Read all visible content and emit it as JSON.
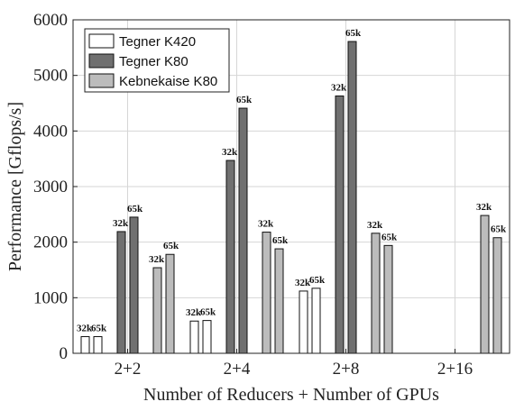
{
  "chart_data": {
    "type": "bar",
    "xlabel": "Number of Reducers + Number of GPUs",
    "ylabel": "Performance [Gflops/s]",
    "ylim": [
      0,
      6000
    ],
    "yticks": [
      0,
      1000,
      2000,
      3000,
      4000,
      5000,
      6000
    ],
    "grid": true,
    "legend_position": "top-left",
    "categories": [
      "2+2",
      "2+4",
      "2+8",
      "2+16"
    ],
    "sub_labels": [
      "32k",
      "65k"
    ],
    "series": [
      {
        "name": "Tegner K420",
        "color": "#ffffff",
        "values": [
          [
            300,
            300
          ],
          [
            580,
            590
          ],
          [
            1120,
            1170
          ],
          [
            0,
            0
          ]
        ],
        "labels": [
          [
            "32k",
            "65k"
          ],
          [
            "32k",
            "65k"
          ],
          [
            "32k",
            "65k"
          ],
          [
            "",
            ""
          ]
        ]
      },
      {
        "name": "Tegner K80",
        "color": "#707070",
        "values": [
          [
            2190,
            2450
          ],
          [
            3470,
            4410
          ],
          [
            4630,
            5610
          ],
          [
            0,
            0
          ]
        ],
        "labels": [
          [
            "32k",
            "65k"
          ],
          [
            "32k",
            "65k"
          ],
          [
            "32k",
            "65k"
          ],
          [
            "",
            ""
          ]
        ]
      },
      {
        "name": "Kebnekaise K80",
        "color": "#bcbcbc",
        "values": [
          [
            1540,
            1780
          ],
          [
            2180,
            1880
          ],
          [
            2160,
            1940
          ],
          [
            2480,
            2080
          ]
        ],
        "labels": [
          [
            "32k",
            "65k"
          ],
          [
            "32k",
            "65k"
          ],
          [
            "32k",
            "65k"
          ],
          [
            "32k",
            "65k"
          ]
        ]
      }
    ]
  }
}
